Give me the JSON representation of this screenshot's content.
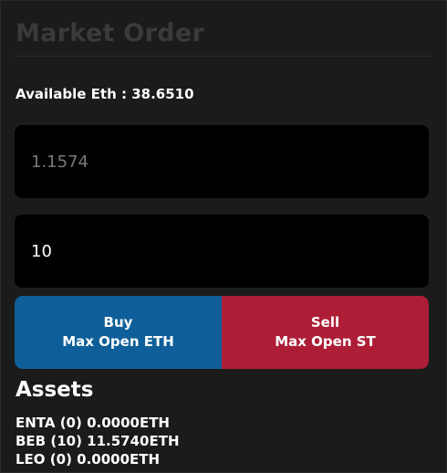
{
  "panel": {
    "title": "Market Order",
    "available_label": "Available Eth : 38.6510"
  },
  "form": {
    "price_placeholder": "1.1574",
    "amount_value": "10"
  },
  "actions": {
    "buy_label": "Buy",
    "buy_sub": "Max Open ETH",
    "sell_label": "Sell",
    "sell_sub": "Max Open ST",
    "buy_color": "#0e5f99",
    "sell_color": "#ad1e36"
  },
  "assets": {
    "heading": "Assets",
    "items": [
      "ENTA (0) 0.0000ETH",
      "BEB (10) 11.5740ETH",
      "LEO (0) 0.0000ETH"
    ]
  }
}
